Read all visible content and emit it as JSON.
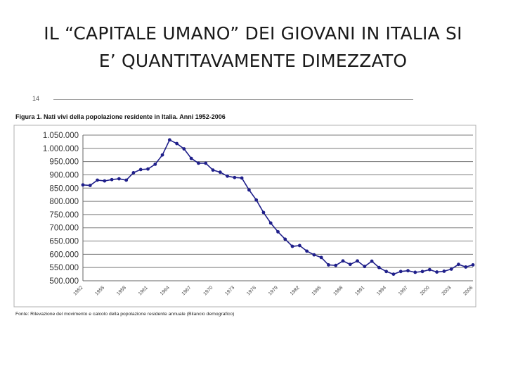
{
  "slide": {
    "title_line1": "IL “CAPITALE UMANO” DEI GIOVANI IN ITALIA SI",
    "title_line2": "E’ QUANTITAVAMENTE DIMEZZATO",
    "page_number": "14"
  },
  "figure": {
    "caption": "Figura 1. Nati vivi della popolazione residente in Italia. Anni 1952-2006",
    "source": "Fonte: Rilevazione del movimento e calcolo della popolazione residente annuale (Bilancio demografico)"
  },
  "chart_data": {
    "type": "line",
    "title": "Figura 1. Nati vivi della popolazione residente in Italia. Anni 1952-2006",
    "xlabel": "",
    "ylabel": "",
    "ylim": [
      500000,
      1050000
    ],
    "y_ticks": [
      "500.000",
      "550.000",
      "600.000",
      "650.000",
      "700.000",
      "750.000",
      "800.000",
      "850.000",
      "900.000",
      "950.000",
      "1.000.000",
      "1.050.000"
    ],
    "x_tick_labels": [
      "1952",
      "1955",
      "1958",
      "1961",
      "1964",
      "1967",
      "1970",
      "1973",
      "1976",
      "1979",
      "1982",
      "1985",
      "1988",
      "1991",
      "1994",
      "1997",
      "2000",
      "2003",
      "2006"
    ],
    "grid": "horizontal",
    "line_color": "#1f1f8a",
    "series": [
      {
        "x": [
          1952,
          1953,
          1954,
          1955,
          1956,
          1957,
          1958,
          1959,
          1960,
          1961,
          1962,
          1963,
          1964,
          1965,
          1966,
          1967,
          1968,
          1969,
          1970,
          1971,
          1972,
          1973,
          1974,
          1975,
          1976,
          1977,
          1978,
          1979,
          1980,
          1981,
          1982,
          1983,
          1984,
          1985,
          1986,
          1987,
          1988,
          1989,
          1990,
          1991,
          1992,
          1993,
          1994,
          1995,
          1996,
          1997,
          1998,
          1999,
          2000,
          2001,
          2002,
          2003,
          2004,
          2005,
          2006
        ],
        "values": [
          862000,
          860000,
          880000,
          877000,
          882000,
          885000,
          880000,
          908000,
          920000,
          922000,
          940000,
          975000,
          1032000,
          1018000,
          998000,
          962000,
          944000,
          944000,
          918000,
          910000,
          895000,
          890000,
          888000,
          843000,
          805000,
          758000,
          718000,
          685000,
          657000,
          630000,
          633000,
          612000,
          598000,
          588000,
          560000,
          558000,
          575000,
          562000,
          575000,
          554000,
          574000,
          550000,
          535000,
          525000,
          535000,
          538000,
          532000,
          535000,
          542000,
          533000,
          536000,
          544000,
          562000,
          552000,
          560000
        ]
      }
    ]
  }
}
